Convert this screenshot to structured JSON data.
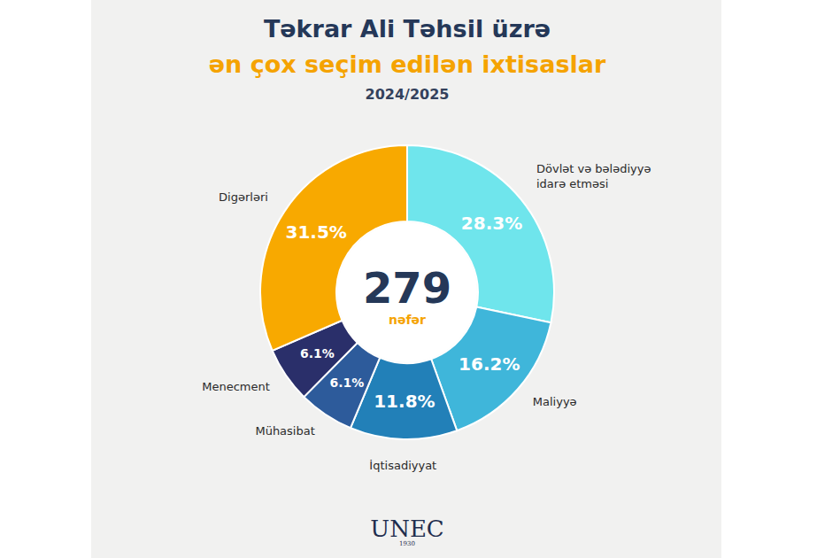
{
  "chart_data": {
    "type": "pie",
    "title": "Təkrar Ali Təhsil üzrə",
    "subtitle": "ən çox seçim edilən ixtisaslar",
    "annotations": [
      "2024/2025",
      "nəfər",
      "UNEC",
      "1930"
    ],
    "total": 279,
    "categories": [
      "Dövlət və bələdiyyə idarə etməsi",
      "Maliyyə",
      "İqtisadiyyat",
      "Mühasibat",
      "Menecment",
      "Digərləri"
    ],
    "values": [
      28.3,
      16.2,
      11.8,
      6.1,
      6.1,
      31.5
    ],
    "value_labels": [
      "28.3%",
      "16.2%",
      "11.8%",
      "6.1%",
      "6.1%",
      "31.5%"
    ],
    "colors": [
      "#6fe5ec",
      "#3fb6da",
      "#2280b8",
      "#2d5b9b",
      "#2a2f6a",
      "#f8a900"
    ],
    "data_labels": true
  }
}
